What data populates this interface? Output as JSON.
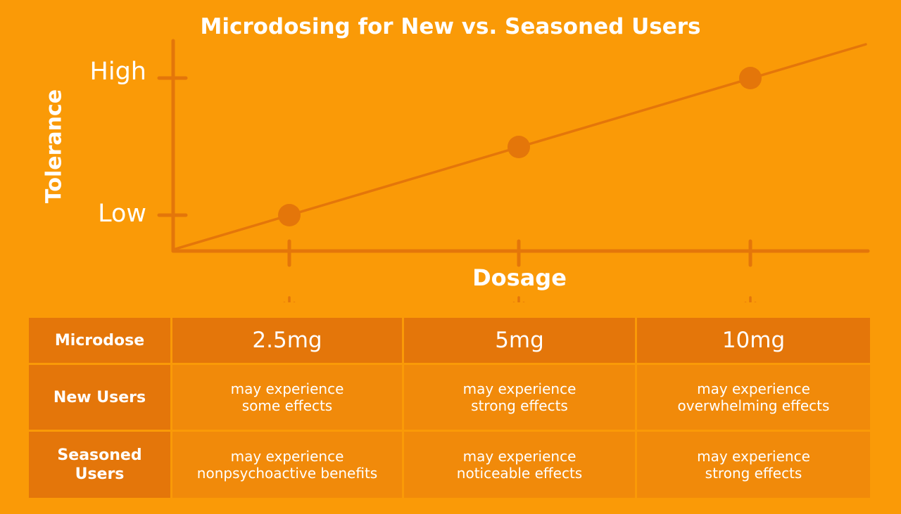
{
  "chart_data": {
    "type": "line",
    "title": "Microdosing for New vs. Seasoned Users",
    "xlabel": "Dosage",
    "ylabel": "Tolerance",
    "y_tick_labels": [
      "Low",
      "High"
    ],
    "x_categories": [
      "2.5mg",
      "5mg",
      "10mg"
    ],
    "points": [
      {
        "x": "2.5mg",
        "y": "Low"
      },
      {
        "x": "5mg",
        "y": "Medium"
      },
      {
        "x": "10mg",
        "y": "High"
      }
    ],
    "grid": false,
    "legend": "none",
    "colors": {
      "background": "#FA9A07",
      "line": "#E4760A",
      "axis": "#E4760A",
      "text": "#ffffff"
    }
  },
  "table": {
    "header_row_label": "Microdose",
    "doses": [
      "2.5mg",
      "5mg",
      "10mg"
    ],
    "rows": [
      {
        "label_lines": [
          "New Users"
        ],
        "cells": [
          [
            "may experience",
            "some effects"
          ],
          [
            "may experience",
            "strong effects"
          ],
          [
            "may experience",
            "overwhelming effects"
          ]
        ]
      },
      {
        "label_lines": [
          "Seasoned",
          "Users"
        ],
        "cells": [
          [
            "may experience",
            "nonpsychoactive benefits"
          ],
          [
            "may experience",
            "noticeable effects"
          ],
          [
            "may experience",
            "strong effects"
          ]
        ]
      }
    ],
    "colors": {
      "header_cell": "#E4760A",
      "body_cell": "#F18A0A"
    }
  }
}
